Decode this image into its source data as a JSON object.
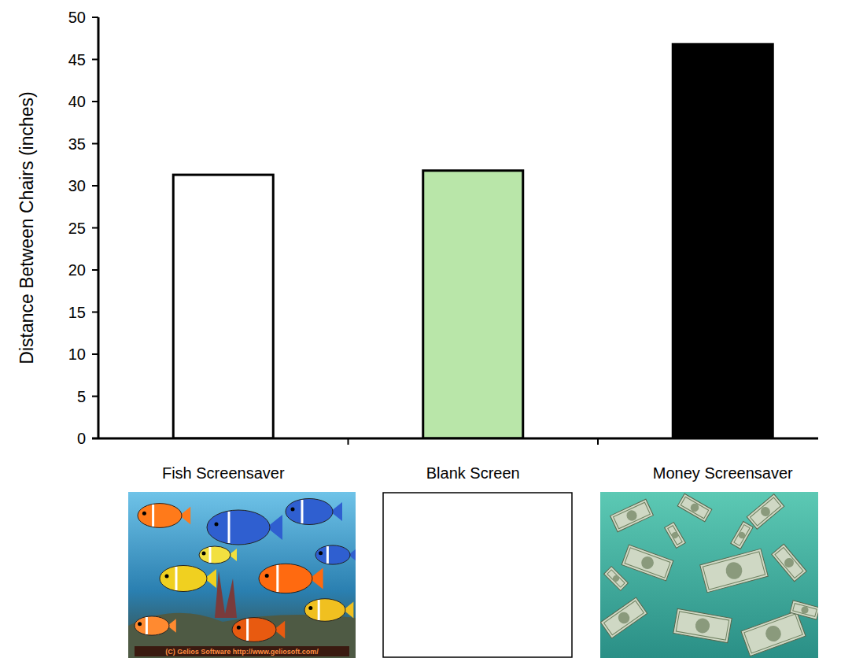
{
  "chart_data": {
    "type": "bar",
    "y_label": "Distance Between Chairs (inches)",
    "categories": [
      "Fish Screensaver",
      "Blank Screen",
      "Money Screensaver"
    ],
    "values": [
      31.3,
      31.8,
      46.8
    ],
    "colors": [
      "#ffffff",
      "#b9e6a9",
      "#000000"
    ],
    "ylim": [
      0,
      50
    ],
    "yticks": [
      0,
      5,
      10,
      15,
      20,
      25,
      30,
      35,
      40,
      45,
      50
    ],
    "grid": false,
    "annotations": [
      "(C) Gelios Software http://www.geliosoft.com/"
    ]
  }
}
